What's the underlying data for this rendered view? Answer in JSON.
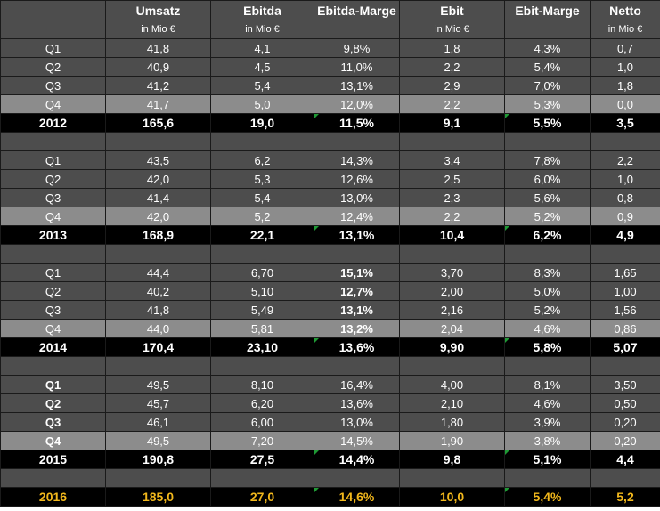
{
  "headers": [
    "",
    "Umsatz",
    "Ebitda",
    "Ebitda-Marge",
    "Ebit",
    "Ebit-Marge",
    "Netto"
  ],
  "units": [
    "",
    "in Mio €",
    "in Mio €",
    "",
    "in Mio €",
    "",
    "in Mio €"
  ],
  "years": [
    {
      "quarters": [
        {
          "label": "Q1",
          "umsatz": "41,8",
          "ebitda": "4,1",
          "ebitda_marge": "9,8%",
          "ebit": "1,8",
          "ebit_marge": "4,3%",
          "netto": "0,7"
        },
        {
          "label": "Q2",
          "umsatz": "40,9",
          "ebitda": "4,5",
          "ebitda_marge": "11,0%",
          "ebit": "2,2",
          "ebit_marge": "5,4%",
          "netto": "1,0"
        },
        {
          "label": "Q3",
          "umsatz": "41,2",
          "ebitda": "5,4",
          "ebitda_marge": "13,1%",
          "ebit": "2,9",
          "ebit_marge": "7,0%",
          "netto": "1,8"
        },
        {
          "label": "Q4",
          "umsatz": "41,7",
          "ebitda": "5,0",
          "ebitda_marge": "12,0%",
          "ebit": "2,2",
          "ebit_marge": "5,3%",
          "netto": "0,0"
        }
      ],
      "total": {
        "label": "2012",
        "umsatz": "165,6",
        "ebitda": "19,0",
        "ebitda_marge": "11,5%",
        "ebit": "9,1",
        "ebit_marge": "5,5%",
        "netto": "3,5"
      }
    },
    {
      "quarters": [
        {
          "label": "Q1",
          "umsatz": "43,5",
          "ebitda": "6,2",
          "ebitda_marge": "14,3%",
          "ebit": "3,4",
          "ebit_marge": "7,8%",
          "netto": "2,2"
        },
        {
          "label": "Q2",
          "umsatz": "42,0",
          "ebitda": "5,3",
          "ebitda_marge": "12,6%",
          "ebit": "2,5",
          "ebit_marge": "6,0%",
          "netto": "1,0"
        },
        {
          "label": "Q3",
          "umsatz": "41,4",
          "ebitda": "5,4",
          "ebitda_marge": "13,0%",
          "ebit": "2,3",
          "ebit_marge": "5,6%",
          "netto": "0,8"
        },
        {
          "label": "Q4",
          "umsatz": "42,0",
          "ebitda": "5,2",
          "ebitda_marge": "12,4%",
          "ebit": "2,2",
          "ebit_marge": "5,2%",
          "netto": "0,9"
        }
      ],
      "total": {
        "label": "2013",
        "umsatz": "168,9",
        "ebitda": "22,1",
        "ebitda_marge": "13,1%",
        "ebit": "10,4",
        "ebit_marge": "6,2%",
        "netto": "4,9"
      }
    },
    {
      "quarters": [
        {
          "label": "Q1",
          "umsatz": "44,4",
          "ebitda": "6,70",
          "ebitda_marge": "15,1%",
          "ebit": "3,70",
          "ebit_marge": "8,3%",
          "netto": "1,65"
        },
        {
          "label": "Q2",
          "umsatz": "40,2",
          "ebitda": "5,10",
          "ebitda_marge": "12,7%",
          "ebit": "2,00",
          "ebit_marge": "5,0%",
          "netto": "1,00"
        },
        {
          "label": "Q3",
          "umsatz": "41,8",
          "ebitda": "5,49",
          "ebitda_marge": "13,1%",
          "ebit": "2,16",
          "ebit_marge": "5,2%",
          "netto": "1,56"
        },
        {
          "label": "Q4",
          "umsatz": "44,0",
          "ebitda": "5,81",
          "ebitda_marge": "13,2%",
          "ebit": "2,04",
          "ebit_marge": "4,6%",
          "netto": "0,86"
        }
      ],
      "total": {
        "label": "2014",
        "umsatz": "170,4",
        "ebitda": "23,10",
        "ebitda_marge": "13,6%",
        "ebit": "9,90",
        "ebit_marge": "5,8%",
        "netto": "5,07"
      }
    },
    {
      "quarters": [
        {
          "label": "Q1",
          "umsatz": "49,5",
          "ebitda": "8,10",
          "ebitda_marge": "16,4%",
          "ebit": "4,00",
          "ebit_marge": "8,1%",
          "netto": "3,50"
        },
        {
          "label": "Q2",
          "umsatz": "45,7",
          "ebitda": "6,20",
          "ebitda_marge": "13,6%",
          "ebit": "2,10",
          "ebit_marge": "4,6%",
          "netto": "0,50"
        },
        {
          "label": "Q3",
          "umsatz": "46,1",
          "ebitda": "6,00",
          "ebitda_marge": "13,0%",
          "ebit": "1,80",
          "ebit_marge": "3,9%",
          "netto": "0,20"
        },
        {
          "label": "Q4",
          "umsatz": "49,5",
          "ebitda": "7,20",
          "ebitda_marge": "14,5%",
          "ebit": "1,90",
          "ebit_marge": "3,8%",
          "netto": "0,20"
        }
      ],
      "total": {
        "label": "2015",
        "umsatz": "190,8",
        "ebitda": "27,5",
        "ebitda_marge": "14,4%",
        "ebit": "9,8",
        "ebit_marge": "5,1%",
        "netto": "4,4"
      }
    }
  ],
  "forecast": {
    "label": "2016",
    "umsatz": "185,0",
    "ebitda": "27,0",
    "ebitda_marge": "14,6%",
    "ebit": "10,0",
    "ebit_marge": "5,4%",
    "netto": "5,2"
  },
  "colors": {
    "forecast_text": "#f2b81c",
    "cell_dark": "#4d4d4d",
    "cell_q4": "#8c8c8c",
    "total_bg": "#000000",
    "flag": "#1f9a35"
  }
}
